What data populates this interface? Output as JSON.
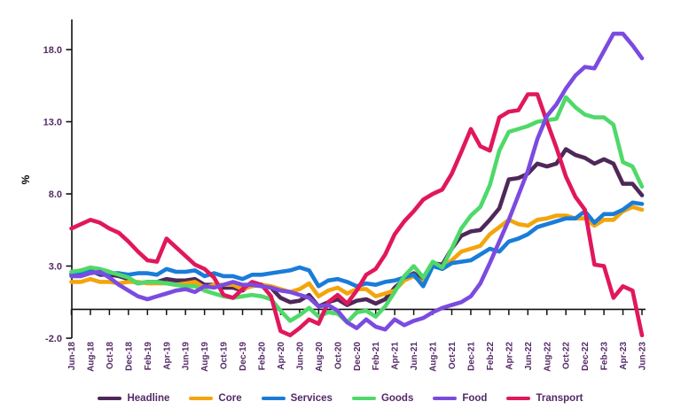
{
  "chart_data": {
    "type": "line",
    "title": "",
    "xlabel": "",
    "ylabel": "%",
    "grid": false,
    "legend_position": "bottom",
    "ylim": [
      -2,
      20
    ],
    "y_ticks": [
      18,
      13,
      8,
      3,
      -2
    ],
    "y_tick_labels": [
      "18.0",
      "13.0",
      "8.0",
      "3.0",
      "-2.0"
    ],
    "x_tick_every": 2,
    "x_tick_labels": [
      "Jun-18",
      "Aug-18",
      "Oct-18",
      "Dec-18",
      "Feb-19",
      "Apr-19",
      "Jun-19",
      "Aug-19",
      "Oct-19",
      "Dec-19",
      "Feb-20",
      "Apr-20",
      "Jun-20",
      "Aug-20",
      "Oct-20",
      "Dec-20",
      "Feb-21",
      "Apr-21",
      "Jun-21",
      "Aug-21",
      "Oct-21",
      "Dec-21",
      "Feb-22",
      "Apr-22",
      "Jun-22",
      "Aug-22",
      "Oct-22",
      "Dec-22",
      "Feb-23",
      "Apr-23",
      "Jun-23"
    ],
    "x_range_note": "monthly data, 61 points, Jun-2018 to Jun-2023",
    "colors": {
      "axis_line": "#111111",
      "text": "#542A66"
    },
    "series": [
      {
        "name": "Headline",
        "color": "#4E2859",
        "values": [
          2.4,
          2.5,
          2.7,
          2.4,
          2.4,
          2.3,
          2.1,
          1.8,
          1.9,
          1.9,
          2.1,
          2.0,
          2.0,
          2.1,
          1.7,
          1.7,
          1.5,
          1.5,
          1.3,
          1.8,
          1.7,
          1.5,
          0.8,
          0.5,
          0.6,
          1.0,
          0.2,
          0.5,
          0.7,
          0.3,
          0.6,
          0.7,
          0.4,
          0.7,
          1.5,
          2.1,
          2.5,
          2.0,
          3.2,
          3.1,
          4.2,
          5.1,
          5.4,
          5.5,
          6.2,
          7.0,
          9.0,
          9.1,
          9.4,
          10.1,
          9.9,
          10.1,
          11.1,
          10.7,
          10.5,
          10.1,
          10.4,
          10.1,
          8.7,
          8.7,
          7.9
        ]
      },
      {
        "name": "Core",
        "color": "#F2A50C",
        "values": [
          1.9,
          1.9,
          2.1,
          1.9,
          1.9,
          1.8,
          1.9,
          1.9,
          1.8,
          1.8,
          1.8,
          1.7,
          1.8,
          1.9,
          1.5,
          1.7,
          1.7,
          1.7,
          1.4,
          1.6,
          1.7,
          1.6,
          1.4,
          1.2,
          1.4,
          1.8,
          0.9,
          1.3,
          1.5,
          1.1,
          1.4,
          1.4,
          0.9,
          1.1,
          1.3,
          2.0,
          2.3,
          1.8,
          3.1,
          2.9,
          3.4,
          4.0,
          4.2,
          4.4,
          5.2,
          5.7,
          6.2,
          5.9,
          5.8,
          6.2,
          6.3,
          6.5,
          6.5,
          6.3,
          6.3,
          5.8,
          6.2,
          6.2,
          6.8,
          7.1,
          6.9
        ]
      },
      {
        "name": "Services",
        "color": "#1A7CD9",
        "values": [
          2.5,
          2.6,
          2.6,
          2.5,
          2.5,
          2.5,
          2.4,
          2.5,
          2.5,
          2.4,
          2.8,
          2.6,
          2.6,
          2.7,
          2.3,
          2.5,
          2.3,
          2.3,
          2.1,
          2.4,
          2.4,
          2.5,
          2.6,
          2.7,
          2.9,
          2.7,
          1.6,
          2.0,
          2.1,
          1.9,
          1.6,
          1.8,
          1.7,
          1.9,
          2.0,
          2.2,
          2.4,
          1.6,
          3.0,
          2.8,
          3.2,
          3.3,
          3.4,
          3.8,
          4.2,
          4.0,
          4.7,
          4.9,
          5.2,
          5.7,
          5.9,
          6.1,
          6.3,
          6.3,
          6.8,
          6.0,
          6.6,
          6.6,
          6.9,
          7.4,
          7.3
        ]
      },
      {
        "name": "Goods",
        "color": "#4FD96A",
        "values": [
          2.6,
          2.7,
          2.9,
          2.8,
          2.6,
          2.4,
          2.2,
          1.8,
          1.9,
          1.9,
          1.8,
          1.7,
          1.6,
          1.6,
          1.3,
          1.1,
          0.9,
          0.8,
          0.9,
          1.0,
          0.9,
          0.7,
          -0.1,
          -0.8,
          -0.4,
          0.1,
          -0.5,
          -0.2,
          -0.3,
          -0.9,
          -0.2,
          -0.1,
          -0.5,
          0.2,
          1.2,
          2.3,
          3.0,
          2.2,
          3.3,
          2.9,
          4.2,
          5.6,
          6.5,
          7.1,
          8.6,
          11.0,
          12.3,
          12.5,
          12.7,
          13.0,
          13.1,
          13.2,
          14.7,
          14.0,
          13.5,
          13.3,
          13.3,
          12.8,
          10.2,
          9.9,
          8.5
        ]
      },
      {
        "name": "Food",
        "color": "#7B4BE0",
        "values": [
          2.3,
          2.3,
          2.5,
          2.6,
          2.2,
          1.7,
          1.3,
          0.9,
          0.7,
          0.9,
          1.1,
          1.3,
          1.4,
          1.2,
          1.6,
          1.5,
          1.7,
          1.9,
          1.7,
          1.7,
          1.6,
          1.5,
          1.3,
          1.2,
          1.0,
          0.8,
          0.2,
          0.3,
          -0.1,
          -0.9,
          -1.3,
          -0.7,
          -1.2,
          -1.4,
          -0.7,
          -1.1,
          -0.8,
          -0.6,
          -0.2,
          0.1,
          0.3,
          0.5,
          0.9,
          1.8,
          3.2,
          4.7,
          6.2,
          7.9,
          9.6,
          11.8,
          13.4,
          14.2,
          15.3,
          16.2,
          16.8,
          16.7,
          17.9,
          19.1,
          19.1,
          18.3,
          17.4
        ]
      },
      {
        "name": "Transport",
        "color": "#E1175C",
        "values": [
          5.6,
          5.9,
          6.2,
          6.0,
          5.6,
          5.3,
          4.7,
          4.0,
          3.4,
          3.3,
          4.9,
          4.3,
          3.7,
          3.1,
          2.8,
          2.2,
          1.0,
          0.8,
          1.4,
          1.9,
          1.7,
          0.9,
          -1.5,
          -1.8,
          -1.3,
          -0.7,
          -1.0,
          0.5,
          1.0,
          0.4,
          1.3,
          2.4,
          2.8,
          3.8,
          5.2,
          6.1,
          6.8,
          7.6,
          8.0,
          8.3,
          9.4,
          10.9,
          12.5,
          11.3,
          11.0,
          13.3,
          13.7,
          13.8,
          14.9,
          14.9,
          13.0,
          11.2,
          9.2,
          7.8,
          6.9,
          3.1,
          3.0,
          0.8,
          1.6,
          1.3,
          -1.8
        ]
      }
    ],
    "draw_order": [
      "Headline",
      "Core",
      "Services",
      "Goods",
      "Transport",
      "Food"
    ]
  },
  "legend": {
    "items": [
      "Headline",
      "Core",
      "Services",
      "Goods",
      "Food",
      "Transport"
    ]
  }
}
